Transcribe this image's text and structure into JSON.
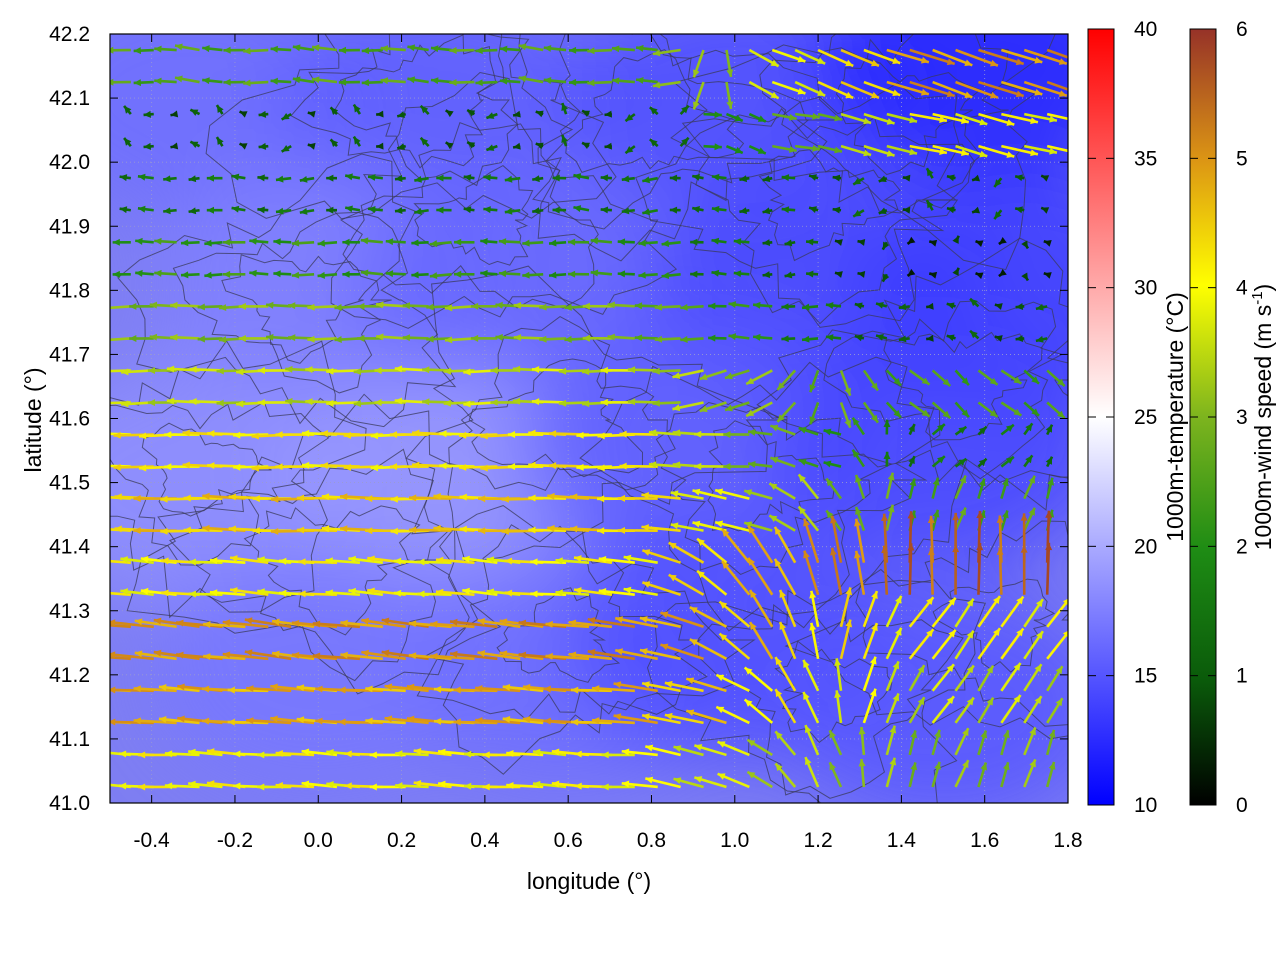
{
  "chart_data": {
    "type": "heatmap",
    "title": "",
    "xlabel": "longitude (°)",
    "ylabel": "latitude (°)",
    "xlim": [
      -0.5,
      1.8
    ],
    "ylim": [
      41.0,
      42.2
    ],
    "x_ticks": [
      "-0.4",
      "-0.2",
      "0.0",
      "0.2",
      "0.4",
      "0.6",
      "0.8",
      "1.0",
      "1.2",
      "1.4",
      "1.6",
      "1.8"
    ],
    "x_tick_values": [
      -0.4,
      -0.2,
      0.0,
      0.2,
      0.4,
      0.6,
      0.8,
      1.0,
      1.2,
      1.4,
      1.6,
      1.8
    ],
    "y_ticks": [
      "41.0",
      "41.1",
      "41.2",
      "41.3",
      "41.4",
      "41.5",
      "41.6",
      "41.7",
      "41.8",
      "41.9",
      "42.0",
      "42.1",
      "42.2"
    ],
    "y_tick_values": [
      41.0,
      41.1,
      41.2,
      41.3,
      41.4,
      41.5,
      41.6,
      41.7,
      41.8,
      41.9,
      42.0,
      42.1,
      42.2
    ],
    "grid": true,
    "temperature_colorbar": {
      "label": "1000m-temperature (°C)",
      "range": [
        10,
        40
      ],
      "ticks": [
        "10",
        "15",
        "20",
        "25",
        "30",
        "35",
        "40"
      ],
      "tick_values": [
        10,
        15,
        20,
        25,
        30,
        35,
        40
      ],
      "colors": [
        "#0000ff",
        "#ffffff",
        "#ff0000"
      ]
    },
    "wind_colorbar": {
      "label": "1000m-wind speed (m s",
      "label_superscript": "-1",
      "label_suffix": ")",
      "range": [
        0,
        6
      ],
      "ticks": [
        "0",
        "1",
        "2",
        "3",
        "4",
        "5",
        "6"
      ],
      "tick_values": [
        0,
        1,
        2,
        3,
        4,
        5,
        6
      ],
      "colors": [
        "#000000",
        "#0a5a0a",
        "#1e8c14",
        "#7db41e",
        "#ffff00",
        "#dc9614",
        "#963228"
      ]
    },
    "temperature_field_regions": [
      {
        "lon": -0.3,
        "lat": 42.1,
        "temp": 16.5
      },
      {
        "lon": 0.3,
        "lat": 42.1,
        "temp": 15.5
      },
      {
        "lon": 1.0,
        "lat": 42.1,
        "temp": 14.5
      },
      {
        "lon": 1.6,
        "lat": 42.15,
        "temp": 12.0
      },
      {
        "lon": 0.0,
        "lat": 41.8,
        "temp": 17.5
      },
      {
        "lon": 0.5,
        "lat": 41.8,
        "temp": 16.0
      },
      {
        "lon": 1.2,
        "lat": 41.8,
        "temp": 14.0
      },
      {
        "lon": 1.7,
        "lat": 41.8,
        "temp": 13.5
      },
      {
        "lon": -0.3,
        "lat": 41.5,
        "temp": 18.5
      },
      {
        "lon": 0.3,
        "lat": 41.5,
        "temp": 19.0
      },
      {
        "lon": 0.9,
        "lat": 41.55,
        "temp": 15.5
      },
      {
        "lon": 1.5,
        "lat": 41.55,
        "temp": 14.0
      },
      {
        "lon": 0.0,
        "lat": 41.2,
        "temp": 17.0
      },
      {
        "lon": 0.6,
        "lat": 41.2,
        "temp": 16.5
      },
      {
        "lon": 1.0,
        "lat": 41.25,
        "temp": 14.5
      },
      {
        "lon": 1.5,
        "lat": 41.15,
        "temp": 15.0
      }
    ],
    "wind_field": [
      {
        "lat": 42.15,
        "lon_start": -0.45,
        "lon_end": 1.75,
        "u": -1.8,
        "v": 0.1,
        "speed": 2.5,
        "east_speed": 5.0,
        "east_dir": [
          0.9,
          -0.3
        ]
      },
      {
        "lat": 42.05,
        "lon_start": -0.45,
        "lon_end": 1.75,
        "u": -0.3,
        "v": 0.1,
        "speed": 1.0,
        "east_speed": 4.0,
        "east_dir": [
          0.8,
          -0.2
        ]
      },
      {
        "lat": 41.95,
        "lon_start": -0.45,
        "lon_end": 1.75,
        "u": -1.2,
        "v": 0.0,
        "speed": 1.5,
        "east_speed": 1.0,
        "east_dir": [
          -0.3,
          0.0
        ]
      },
      {
        "lat": 41.85,
        "lon_start": -0.45,
        "lon_end": 1.75,
        "u": -2.2,
        "v": 0.0,
        "speed": 2.2,
        "east_speed": 0.5,
        "east_dir": [
          -0.2,
          0.0
        ]
      },
      {
        "lat": 41.75,
        "lon_start": -0.45,
        "lon_end": 1.75,
        "u": -3.0,
        "v": 0.0,
        "speed": 3.0,
        "east_speed": 1.0,
        "east_dir": [
          -0.5,
          0.1
        ]
      },
      {
        "lat": 41.65,
        "lon_start": -0.45,
        "lon_end": 1.75,
        "u": -3.5,
        "v": 0.0,
        "speed": 3.5,
        "east_speed": 2.5,
        "east_dir": [
          0.6,
          -0.5
        ]
      },
      {
        "lat": 41.55,
        "lon_start": -0.45,
        "lon_end": 1.75,
        "u": -4.2,
        "v": 0.0,
        "speed": 4.2,
        "east_speed": 1.5,
        "east_dir": [
          0.3,
          0.3
        ]
      },
      {
        "lat": 41.45,
        "lon_start": -0.45,
        "lon_end": 1.75,
        "u": -4.5,
        "v": 0.1,
        "speed": 4.5,
        "east_speed": 2.5,
        "east_dir": [
          0.2,
          0.6
        ]
      },
      {
        "lat": 41.35,
        "lon_start": -0.45,
        "lon_end": 1.75,
        "u": -3.8,
        "v": 0.3,
        "speed": 4.0,
        "east_speed": 5.5,
        "east_dir": [
          0.0,
          1.0
        ]
      },
      {
        "lat": 41.25,
        "lon_start": -0.45,
        "lon_end": 1.75,
        "u": -4.5,
        "v": 0.5,
        "speed": 5.0,
        "east_speed": 4.0,
        "east_dir": [
          0.5,
          0.7
        ]
      },
      {
        "lat": 41.15,
        "lon_start": -0.45,
        "lon_end": 1.75,
        "u": -4.5,
        "v": 0.3,
        "speed": 4.8,
        "east_speed": 3.5,
        "east_dir": [
          0.4,
          0.6
        ]
      },
      {
        "lat": 41.05,
        "lon_start": -0.45,
        "lon_end": 1.75,
        "u": -3.5,
        "v": 0.2,
        "speed": 4.0,
        "east_speed": 3.0,
        "east_dir": [
          0.2,
          0.6
        ]
      }
    ]
  }
}
